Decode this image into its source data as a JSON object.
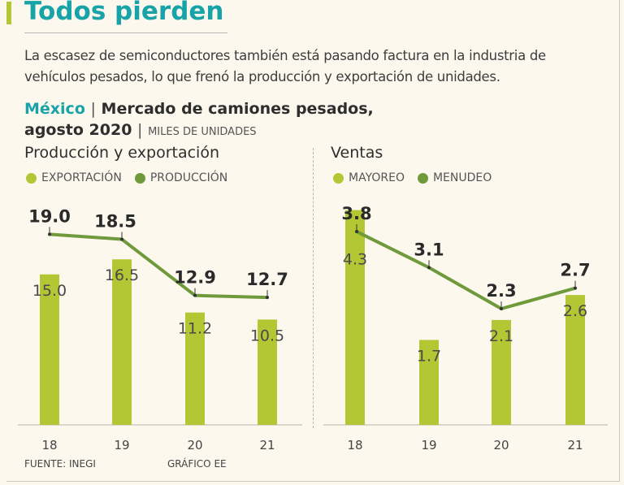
{
  "header": {
    "title": "Todos pierden",
    "subtitle": "La escasez de semiconductores también está pasando factura en la industria de vehículos pesados, lo que frenó la producción y exportación de unidades.",
    "chart_country": "México",
    "chart_separator": "|",
    "chart_title_1": "Mercado de camiones pesados,",
    "chart_title_2": "agosto 2020",
    "chart_units": "MILES DE UNIDADES"
  },
  "footer": {
    "source": "FUENTE: INEGI",
    "credit": "GRÁFICO EE"
  },
  "colors": {
    "bar": "#b3c634",
    "line": "#6f9a3b",
    "title": "#17a3a8"
  },
  "chart_data": [
    {
      "type": "bar+line",
      "title": "Producción y exportación",
      "categories": [
        "18",
        "19",
        "20",
        "21"
      ],
      "series": [
        {
          "name": "EXPORTACIÓN",
          "kind": "bar",
          "values": [
            15.0,
            16.5,
            11.2,
            10.5
          ],
          "labels": [
            "15.0",
            "16.5",
            "11.2",
            "10.5"
          ]
        },
        {
          "name": "PRODUCCIÓN",
          "kind": "line",
          "values": [
            19.0,
            18.5,
            12.9,
            12.7
          ],
          "labels": [
            "19.0",
            "18.5",
            "12.9",
            "12.7"
          ]
        }
      ],
      "ylim": [
        0,
        22.4
      ]
    },
    {
      "type": "bar+line",
      "title": "Ventas",
      "categories": [
        "18",
        "19",
        "20",
        "21"
      ],
      "series": [
        {
          "name": "MAYOREO",
          "kind": "bar",
          "values": [
            4.3,
            1.7,
            2.1,
            2.6
          ],
          "labels": [
            "4.3",
            "1.7",
            "2.1",
            "2.6"
          ]
        },
        {
          "name": "MENUDEO",
          "kind": "line",
          "values": [
            3.8,
            3.1,
            2.3,
            2.7
          ],
          "labels": [
            "3.8",
            "3.1",
            "2.3",
            "2.7"
          ]
        }
      ]
    }
  ]
}
